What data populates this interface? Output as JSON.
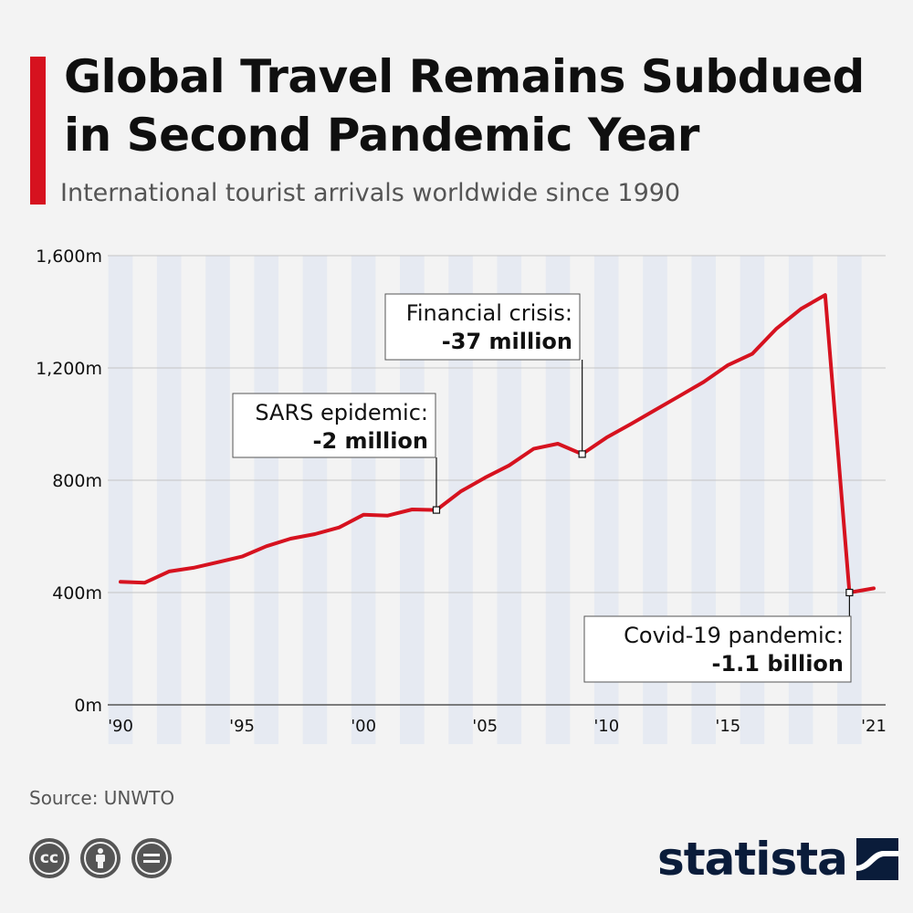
{
  "header": {
    "title": "Global Travel Remains Subdued in Second Pandemic Year",
    "subtitle": "International tourist arrivals worldwide since 1990"
  },
  "footer": {
    "source": "Source: UNWTO",
    "brand": "statista",
    "license_icons": [
      "cc-icon",
      "attribution-icon",
      "no-derivatives-icon"
    ]
  },
  "colors": {
    "accent": "#d6121f",
    "line": "#d6121f",
    "stripe": "#e6eaf2",
    "grid": "#c4c4c4",
    "text": "#0f0f0f",
    "muted": "#555555",
    "brand": "#0a1c3a"
  },
  "chart_data": {
    "type": "line",
    "title": "Global Travel Remains Subdued in Second Pandemic Year",
    "subtitle": "International tourist arrivals worldwide since 1990",
    "ylim": [
      0,
      1600
    ],
    "yticks": [
      0,
      400,
      800,
      1200,
      1600
    ],
    "ytick_labels": [
      "0m",
      "400m",
      "800m",
      "1,200m",
      "1,600m"
    ],
    "xticks": [
      1990,
      1995,
      2000,
      2005,
      2010,
      2015,
      2021
    ],
    "xtick_labels": [
      "'90",
      "'95",
      "'00",
      "'05",
      "'10",
      "'15",
      "'21"
    ],
    "grid": "horizontal",
    "series": [
      {
        "x": [
          1990,
          1991,
          1992,
          1993,
          1994,
          1995,
          1996,
          1997,
          1998,
          1999,
          2000,
          2001,
          2002,
          2003,
          2004,
          2005,
          2006,
          2007,
          2008,
          2009,
          2010,
          2011,
          2012,
          2013,
          2014,
          2015,
          2016,
          2017,
          2018,
          2019,
          2020,
          2021
        ],
        "y": [
          438,
          435,
          475,
          488,
          508,
          528,
          565,
          592,
          608,
          632,
          677,
          674,
          696,
          694,
          760,
          809,
          853,
          912,
          930,
          893,
          952,
          1000,
          1050,
          1100,
          1150,
          1210,
          1250,
          1340,
          1410,
          1460,
          400,
          415
        ]
      }
    ],
    "annotations": [
      {
        "x": 2003,
        "y": 694,
        "label": "SARS epidemic:",
        "value": "-2 million"
      },
      {
        "x": 2009,
        "y": 893,
        "label": "Financial crisis:",
        "value": "-37 million"
      },
      {
        "x": 2020,
        "y": 400,
        "label": "Covid-19 pandemic:",
        "value": "-1.1 billion"
      }
    ]
  }
}
